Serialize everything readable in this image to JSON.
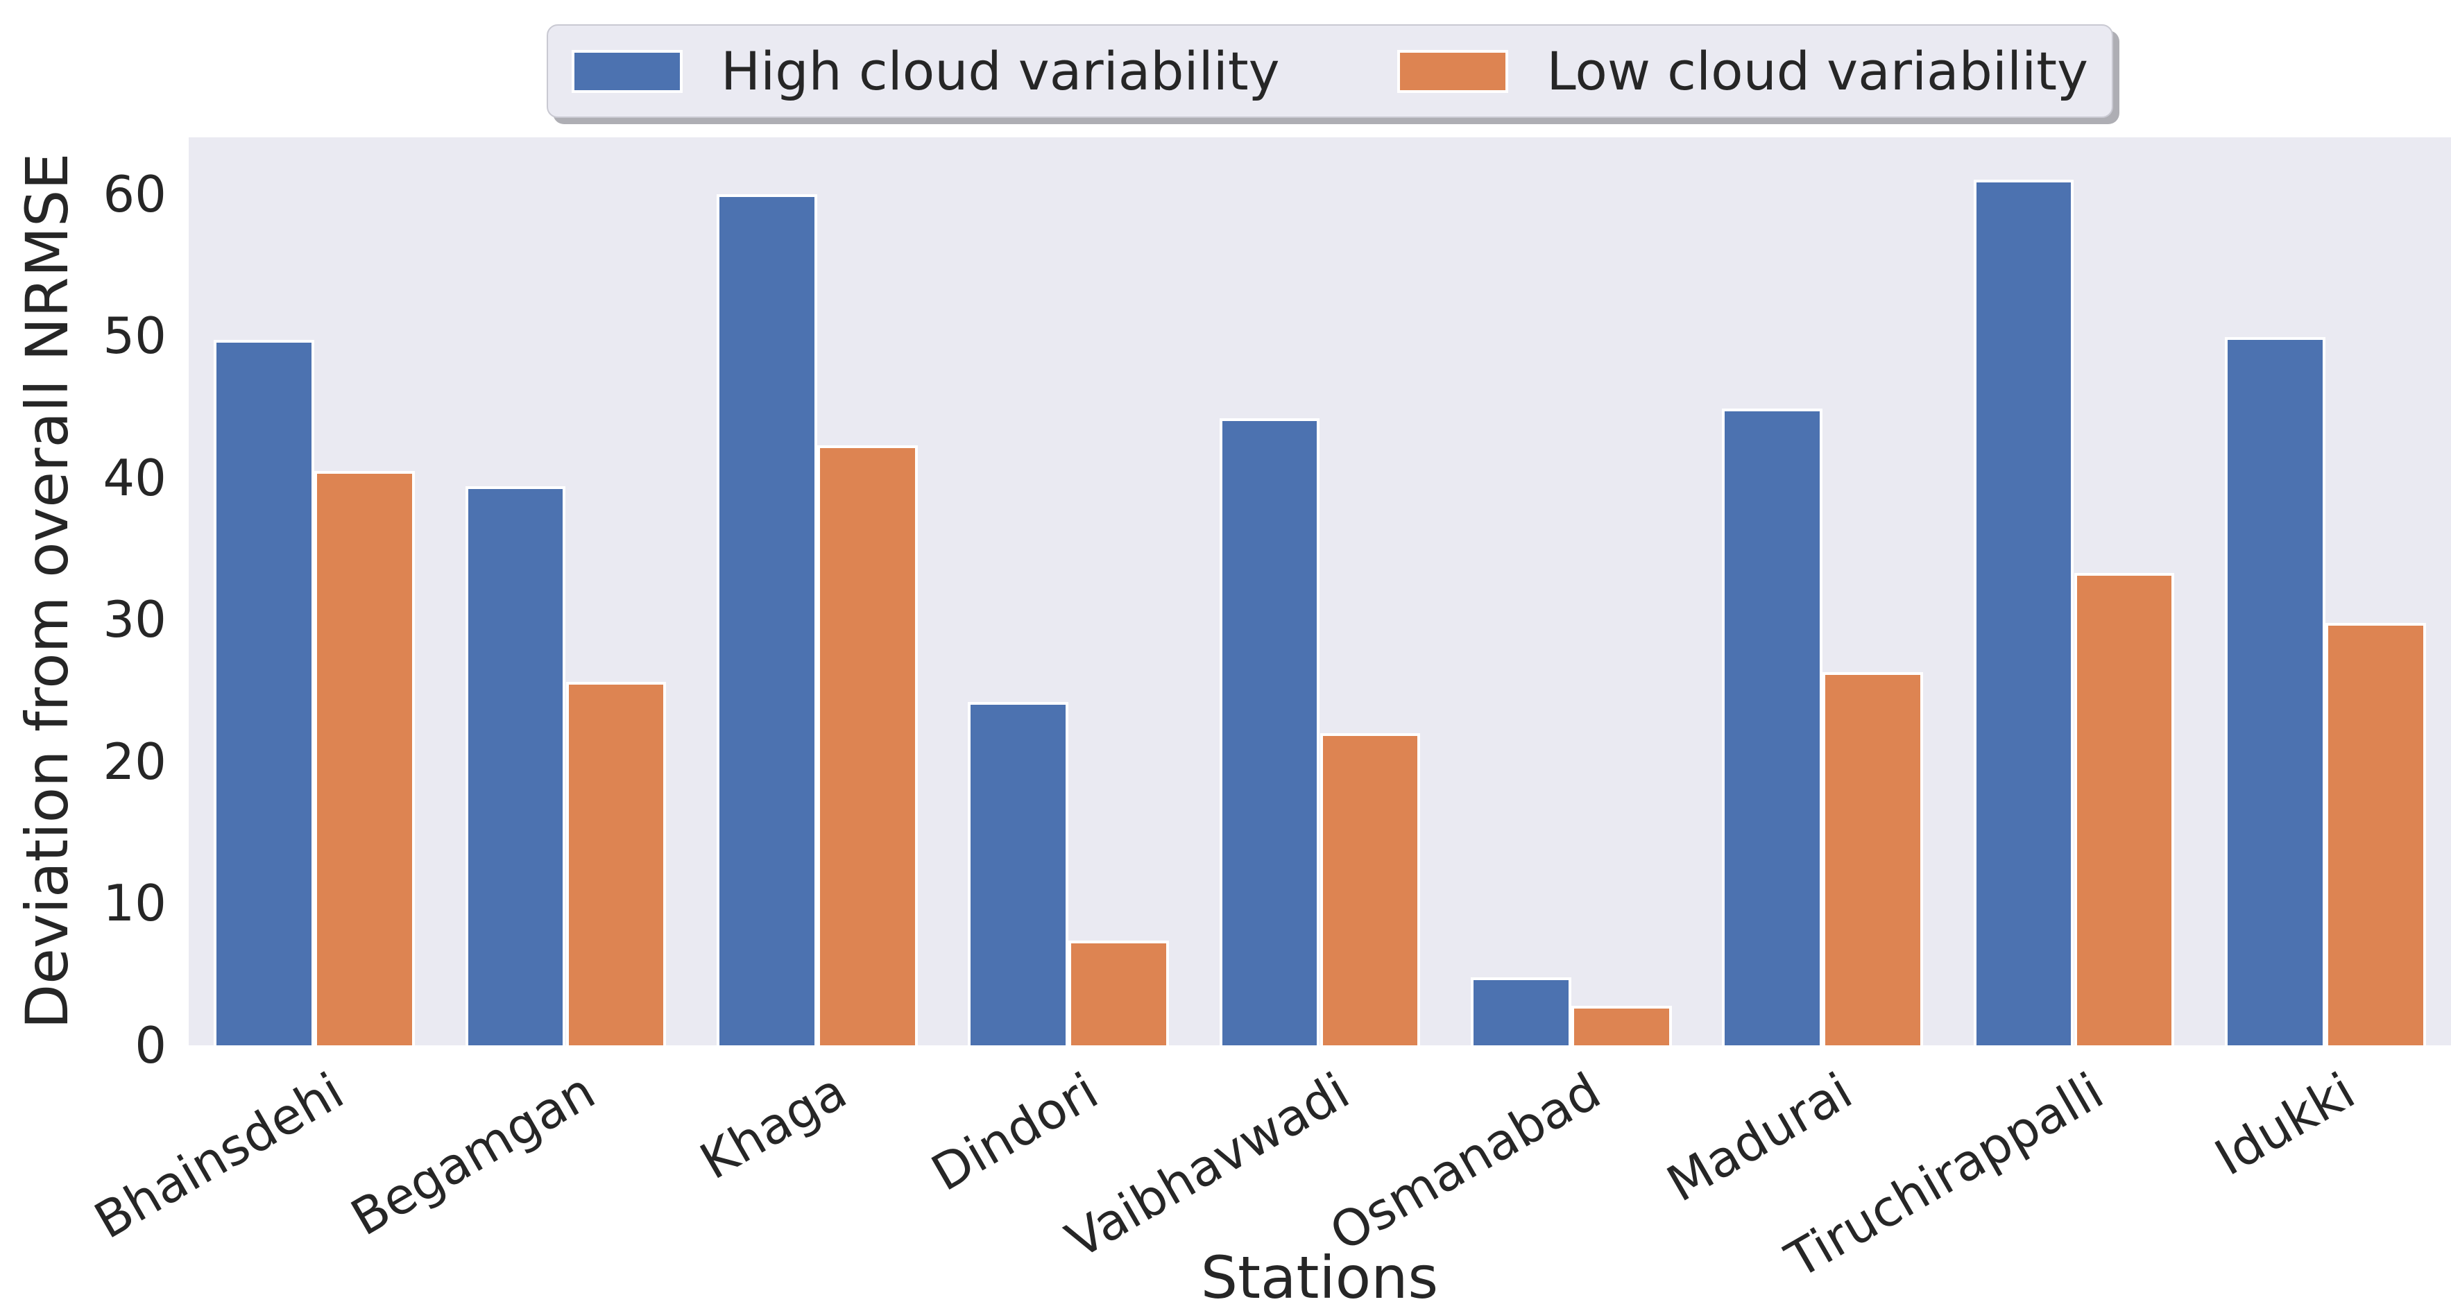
{
  "figure": {
    "ylabel": "Deviation from overall NRMSE",
    "xlabel": "Stations"
  },
  "legend": {
    "items": [
      {
        "label": "High cloud variability",
        "color": "#4c72b0"
      },
      {
        "label": "Low cloud variability",
        "color": "#dd8452"
      }
    ]
  },
  "chart_data": {
    "type": "bar",
    "title": "",
    "xlabel": "Stations",
    "ylabel": "Deviation from overall NRMSE",
    "categories": [
      "Bhainsdehi",
      "Begamgan",
      "Khaga",
      "Dindori",
      "Vaibhavwadi",
      "Osmanabad",
      "Madurai",
      "Tiruchirappalli",
      "Idukki"
    ],
    "series": [
      {
        "name": "High cloud variability",
        "color": "#4c72b0",
        "values": [
          49.7,
          39.4,
          60.0,
          24.2,
          44.2,
          4.8,
          44.9,
          61.0,
          49.9
        ]
      },
      {
        "name": "Low cloud variability",
        "color": "#dd8452",
        "values": [
          40.5,
          25.6,
          42.3,
          7.4,
          22.0,
          2.8,
          26.3,
          33.3,
          29.8
        ]
      }
    ],
    "ylim": [
      0,
      64
    ],
    "yticks": [
      0,
      10,
      20,
      30,
      40,
      50,
      60
    ],
    "grid": false,
    "legend_position": "top-center",
    "bar_group_width": 0.8,
    "xtick_rotation_deg": 30,
    "styles": {
      "figure_bg": "#ffffff",
      "plot_bg": "#eaeaf2",
      "bar_edge": "#ffffff",
      "text_color": "#262626",
      "legend_bg": "#eaeaf2",
      "legend_border": "#c9c9d2"
    }
  }
}
